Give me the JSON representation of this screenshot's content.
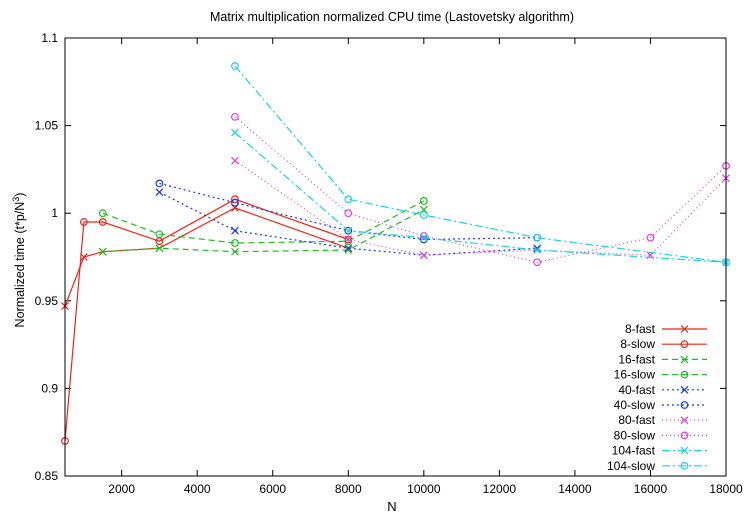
{
  "chart_data": {
    "type": "line",
    "title": "Matrix multiplication normalized CPU time (Lastovetsky algorithm)",
    "xlabel": "N",
    "ylabel": "Normalized time (t*p/N",
    "ylabel_sup": "3",
    "ylabel_end": ")",
    "xlim": [
      500,
      18000
    ],
    "ylim": [
      0.85,
      1.1
    ],
    "xticks": [
      2000,
      4000,
      6000,
      8000,
      10000,
      12000,
      14000,
      16000,
      18000
    ],
    "yticks": [
      0.85,
      0.9,
      0.95,
      1,
      1.05,
      1.1
    ],
    "ytick_labels": [
      "0.85",
      "0.9",
      "0.95",
      "1",
      "1.05",
      "1.1"
    ],
    "grid": false,
    "legend_position": "bottom-right",
    "series": [
      {
        "name": "8-fast",
        "color": "#e8281c",
        "dash": "",
        "marker": "x",
        "x": [
          500,
          1000,
          1500,
          3000,
          5000,
          8000
        ],
        "y": [
          0.947,
          0.975,
          0.978,
          0.98,
          1.003,
          0.98
        ]
      },
      {
        "name": "8-slow",
        "color": "#e8281c",
        "dash": "",
        "marker": "o",
        "x": [
          500,
          1000,
          1500,
          3000,
          5000,
          8000
        ],
        "y": [
          0.87,
          0.995,
          0.995,
          0.984,
          1.008,
          0.985
        ]
      },
      {
        "name": "16-fast",
        "color": "#22bb22",
        "dash": "6,4",
        "marker": "x",
        "x": [
          1500,
          3000,
          5000,
          8000,
          10000
        ],
        "y": [
          0.978,
          0.98,
          0.978,
          0.979,
          1.002
        ]
      },
      {
        "name": "16-slow",
        "color": "#22bb22",
        "dash": "6,4",
        "marker": "o",
        "x": [
          1500,
          3000,
          5000,
          8000,
          10000
        ],
        "y": [
          1.0,
          0.988,
          0.983,
          0.984,
          1.007
        ]
      },
      {
        "name": "40-fast",
        "color": "#1a3fd6",
        "dash": "2,3",
        "marker": "x",
        "x": [
          3000,
          5000,
          8000,
          10000,
          13000
        ],
        "y": [
          1.012,
          0.99,
          0.98,
          0.976,
          0.98
        ]
      },
      {
        "name": "40-slow",
        "color": "#1a3fd6",
        "dash": "2,3",
        "marker": "o",
        "x": [
          3000,
          5000,
          8000,
          10000,
          13000
        ],
        "y": [
          1.017,
          1.006,
          0.99,
          0.985,
          0.986
        ]
      },
      {
        "name": "80-fast",
        "color": "#e040e0",
        "dash": "1,3",
        "marker": "x",
        "x": [
          5000,
          8000,
          10000,
          13000,
          16000,
          18000
        ],
        "y": [
          1.03,
          0.985,
          0.976,
          0.979,
          0.976,
          1.02
        ]
      },
      {
        "name": "80-slow",
        "color": "#e040e0",
        "dash": "1,3",
        "marker": "o",
        "x": [
          5000,
          8000,
          10000,
          13000,
          16000,
          18000
        ],
        "y": [
          1.055,
          1.0,
          0.987,
          0.972,
          0.986,
          1.027
        ]
      },
      {
        "name": "104-fast",
        "color": "#20d0e0",
        "dash": "8,3,2,3",
        "marker": "x",
        "x": [
          5000,
          8000,
          10000,
          13000,
          18000
        ],
        "y": [
          1.046,
          0.99,
          0.986,
          0.979,
          0.972
        ]
      },
      {
        "name": "104-slow",
        "color": "#20d0e0",
        "dash": "8,3,2,3",
        "marker": "o",
        "x": [
          5000,
          8000,
          10000,
          13000,
          18000
        ],
        "y": [
          1.084,
          1.008,
          0.999,
          0.986,
          0.972
        ]
      }
    ]
  }
}
